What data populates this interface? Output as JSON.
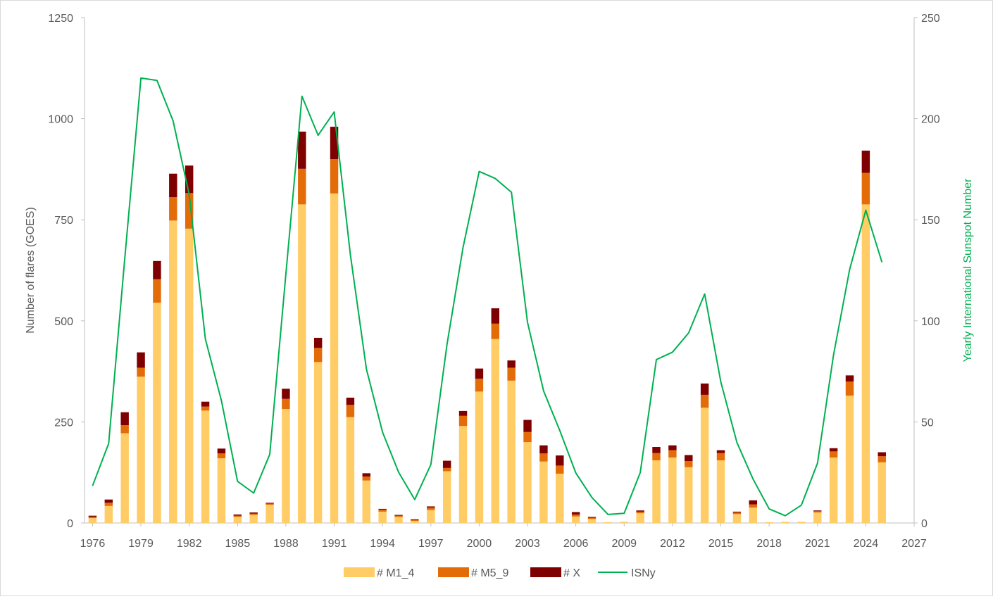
{
  "chart_data": {
    "type": "bar",
    "stacked": true,
    "combo_line_secondary_axis": true,
    "ylabel": "Number of flares (GOES)",
    "y2label": "Yearly International Sunspot Number",
    "ylim": [
      0,
      1250
    ],
    "y2lim": [
      0,
      250
    ],
    "yticks": [
      0,
      250,
      500,
      750,
      1000,
      1250
    ],
    "y2ticks": [
      0,
      50,
      100,
      150,
      200,
      250
    ],
    "xlim": [
      1975.5,
      2027
    ],
    "xticks": [
      1976,
      1979,
      1982,
      1985,
      1988,
      1991,
      1994,
      1997,
      2000,
      2003,
      2006,
      2009,
      2012,
      2015,
      2018,
      2021,
      2024,
      2027
    ],
    "grid": false,
    "legend": "bottom",
    "x": [
      1976,
      1977,
      1978,
      1979,
      1980,
      1981,
      1982,
      1983,
      1984,
      1985,
      1986,
      1987,
      1988,
      1989,
      1990,
      1991,
      1992,
      1993,
      1994,
      1995,
      1996,
      1997,
      1998,
      1999,
      2000,
      2001,
      2002,
      2003,
      2004,
      2005,
      2006,
      2007,
      2008,
      2009,
      2010,
      2011,
      2012,
      2013,
      2014,
      2015,
      2016,
      2017,
      2018,
      2019,
      2020,
      2021,
      2022,
      2023,
      2024,
      2025
    ],
    "series": [
      {
        "name": "# M1_4",
        "color": "#ffcc66",
        "axis": "left",
        "values": [
          12,
          42,
          222,
          362,
          545,
          748,
          728,
          278,
          160,
          15,
          20,
          45,
          282,
          788,
          398,
          815,
          262,
          105,
          28,
          15,
          5,
          32,
          128,
          240,
          325,
          455,
          352,
          200,
          152,
          122,
          16,
          10,
          2,
          3,
          24,
          155,
          162,
          138,
          285,
          155,
          22,
          38,
          2,
          3,
          3,
          26,
          162,
          315,
          788,
          150
        ]
      },
      {
        "name": "# M5_9",
        "color": "#e36c09",
        "axis": "left",
        "values": [
          3,
          8,
          20,
          22,
          58,
          58,
          88,
          10,
          12,
          3,
          3,
          3,
          25,
          88,
          35,
          85,
          30,
          10,
          5,
          3,
          2,
          6,
          8,
          25,
          32,
          38,
          32,
          25,
          20,
          20,
          5,
          3,
          0,
          0,
          4,
          18,
          18,
          15,
          32,
          18,
          4,
          8,
          0,
          0,
          0,
          3,
          15,
          35,
          78,
          15
        ]
      },
      {
        "name": "# X",
        "color": "#7f0000",
        "axis": "left",
        "values": [
          3,
          8,
          32,
          38,
          45,
          58,
          68,
          12,
          12,
          3,
          3,
          2,
          25,
          92,
          25,
          80,
          18,
          8,
          2,
          2,
          2,
          3,
          18,
          12,
          25,
          38,
          18,
          30,
          20,
          25,
          6,
          2,
          0,
          0,
          3,
          15,
          12,
          15,
          28,
          7,
          2,
          10,
          0,
          0,
          0,
          2,
          8,
          15,
          55,
          10
        ]
      },
      {
        "name": "ISNy",
        "color": "#00b050",
        "axis": "right",
        "type": "line",
        "values": [
          18.4,
          39.3,
          131.0,
          220.1,
          218.9,
          198.9,
          162.4,
          91.0,
          60.5,
          20.6,
          14.8,
          33.9,
          123.0,
          211.1,
          191.8,
          203.3,
          133.0,
          76.1,
          44.9,
          25.1,
          11.6,
          28.9,
          88.3,
          136.3,
          173.9,
          170.4,
          163.6,
          99.3,
          65.3,
          45.8,
          24.7,
          12.6,
          4.2,
          4.8,
          24.9,
          80.8,
          84.5,
          94.0,
          113.3,
          69.8,
          39.8,
          21.7,
          7.0,
          3.6,
          8.8,
          29.6,
          83.2,
          125.5,
          154.7,
          129.0
        ]
      }
    ]
  }
}
